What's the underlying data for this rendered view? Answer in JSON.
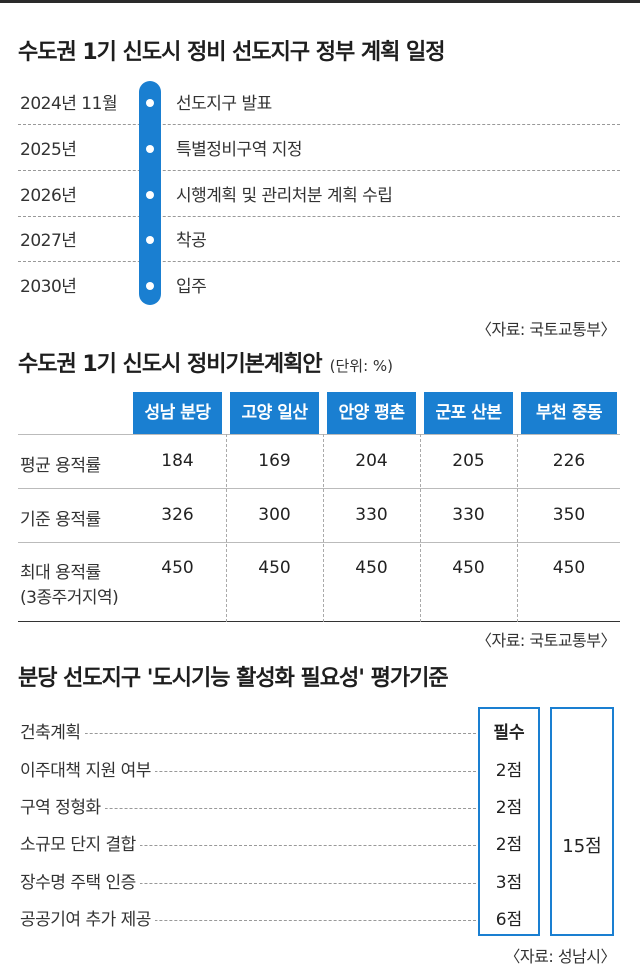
{
  "schedule": {
    "title": "수도권 1기 신도시 정비 선도지구 정부 계획 일정",
    "rows": [
      {
        "year": "2024년 11월",
        "event": "선도지구 발표"
      },
      {
        "year": "2025년",
        "event": "특별정비구역 지정"
      },
      {
        "year": "2026년",
        "event": "시행계획 및 관리처분 계획 수립"
      },
      {
        "year": "2027년",
        "event": "착공"
      },
      {
        "year": "2030년",
        "event": "입주"
      }
    ],
    "source": "〈자료: 국토교통부〉"
  },
  "plan": {
    "title": "수도권 1기 신도시 정비기본계획안",
    "unit": "(단위: %)",
    "columns": [
      "성남 분당",
      "고양 일산",
      "안양 평촌",
      "군포 산본",
      "부천 중동"
    ],
    "rows": [
      {
        "label": "평균 용적률",
        "values": [
          "184",
          "169",
          "204",
          "205",
          "226"
        ]
      },
      {
        "label": "기준 용적률",
        "values": [
          "326",
          "300",
          "330",
          "330",
          "350"
        ]
      },
      {
        "label": "최대 용적률",
        "label2": "(3종주거지역)",
        "values": [
          "450",
          "450",
          "450",
          "450",
          "450"
        ]
      }
    ],
    "source": "〈자료: 국토교통부〉"
  },
  "criteria": {
    "title": "분당 선도지구 '도시기능 활성화 필요성' 평가기준",
    "items": [
      {
        "label": "건축계획",
        "score": "필수"
      },
      {
        "label": "이주대책 지원 여부",
        "score": "2점"
      },
      {
        "label": "구역 정형화",
        "score": "2점"
      },
      {
        "label": "소규모 단지 결합",
        "score": "2점"
      },
      {
        "label": "장수명 주택 인증",
        "score": "3점"
      },
      {
        "label": "공공기여 추가 제공",
        "score": "6점"
      }
    ],
    "total": "15점",
    "source": "〈자료: 성남시〉"
  },
  "colors": {
    "accent": "#1a7fd1"
  }
}
